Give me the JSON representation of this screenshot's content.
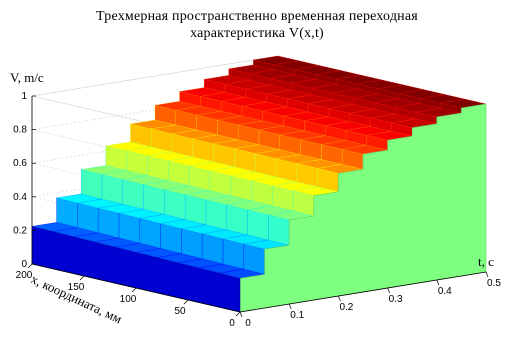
{
  "chart_data": {
    "type": "surface",
    "title_lines": [
      "Трехмерная пространственно временная переходная",
      "характеристика V(x,t)"
    ],
    "zlabel": "V, m/c",
    "tlabel": "t, c",
    "xlabel": "x, координата, мм",
    "z_ticks": [
      "0",
      "0.2",
      "0.4",
      "0.6",
      "0.8",
      "1"
    ],
    "t_ticks": [
      "0",
      "0.1",
      "0.2",
      "0.3",
      "0.4",
      "0.5"
    ],
    "x_ticks": [
      "200",
      "150",
      "100",
      "50",
      "0"
    ],
    "zlim": [
      0,
      1
    ],
    "tlim": [
      0,
      0.5
    ],
    "xlim": [
      0,
      200
    ],
    "steps": {
      "t_grid": [
        0,
        0.05,
        0.1,
        0.15,
        0.2,
        0.25,
        0.3,
        0.35,
        0.4,
        0.45,
        0.5
      ],
      "levels": [
        0.2,
        0.35,
        0.5,
        0.62,
        0.73,
        0.82,
        0.88,
        0.93,
        0.97,
        1.0
      ]
    },
    "front_wall_color": "#7fff7f",
    "colormap": "jet",
    "grid": true
  }
}
